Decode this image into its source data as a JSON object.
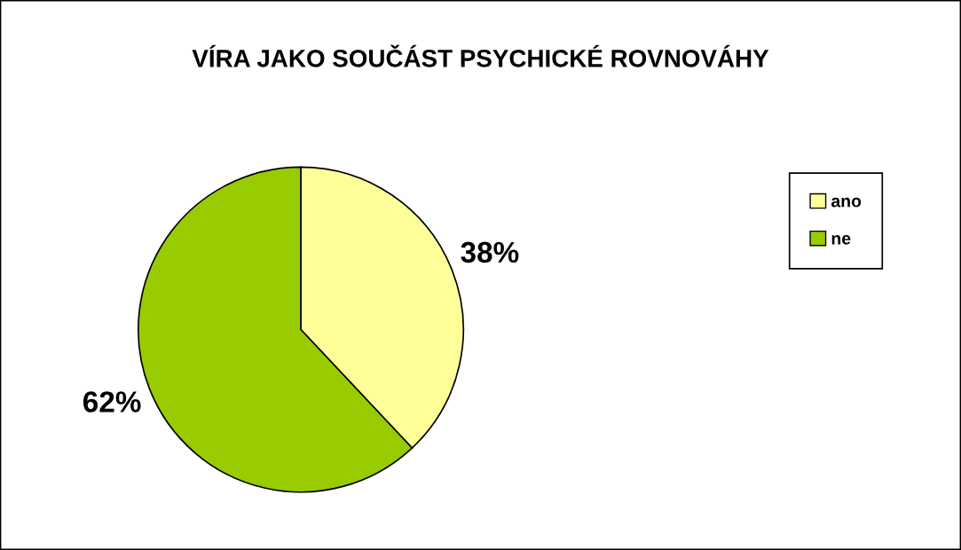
{
  "chart_data": {
    "type": "pie",
    "title": "VÍRA JAKO SOUČÁST PSYCHICKÉ ROVNOVÁHY",
    "categories": [
      "ano",
      "ne"
    ],
    "values": [
      38,
      62
    ],
    "colors": [
      "#ffff99",
      "#99cc00"
    ],
    "value_labels": [
      "38%",
      "62%"
    ],
    "legend": "right"
  }
}
